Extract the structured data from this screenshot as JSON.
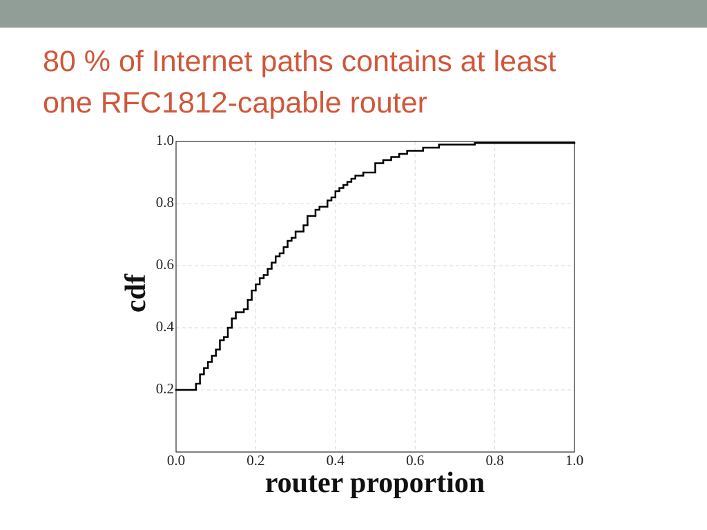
{
  "chart_data": {
    "type": "step",
    "title_lines": [
      "80 % of Internet paths contains at least",
      "one RFC1812-capable router"
    ],
    "x_label": "router proportion",
    "y_label": "cdf",
    "color": "#000000",
    "grid": true,
    "xlim": [
      0,
      1
    ],
    "ylim": [
      0,
      1
    ],
    "xticks": [
      {
        "value": 0,
        "label": "0.0"
      },
      0.2,
      0.4,
      0.6,
      0.8,
      {
        "value": 1,
        "label": "1.0"
      }
    ],
    "yticks": [
      0.2,
      0.4,
      0.6,
      0.8,
      {
        "value": 1,
        "label": "1.0"
      }
    ],
    "x": [
      0,
      0.05,
      0.06,
      0.07,
      0.08,
      0.09,
      0.1,
      0.11,
      0.12,
      0.13,
      0.14,
      0.15,
      0.17,
      0.18,
      0.19,
      0.2,
      0.21,
      0.22,
      0.23,
      0.24,
      0.25,
      0.26,
      0.27,
      0.28,
      0.29,
      0.3,
      0.32,
      0.33,
      0.35,
      0.36,
      0.38,
      0.39,
      0.4,
      0.41,
      0.42,
      0.43,
      0.44,
      0.45,
      0.47,
      0.5,
      0.52,
      0.54,
      0.56,
      0.58,
      0.62,
      0.66,
      0.75
    ],
    "values": [
      0.2,
      0.22,
      0.25,
      0.27,
      0.29,
      0.31,
      0.33,
      0.36,
      0.37,
      0.4,
      0.43,
      0.45,
      0.46,
      0.49,
      0.52,
      0.54,
      0.56,
      0.57,
      0.59,
      0.61,
      0.63,
      0.64,
      0.66,
      0.68,
      0.69,
      0.71,
      0.73,
      0.76,
      0.78,
      0.79,
      0.81,
      0.82,
      0.84,
      0.85,
      0.86,
      0.87,
      0.88,
      0.89,
      0.9,
      0.93,
      0.94,
      0.95,
      0.96,
      0.97,
      0.98,
      0.99,
      0.995
    ]
  }
}
